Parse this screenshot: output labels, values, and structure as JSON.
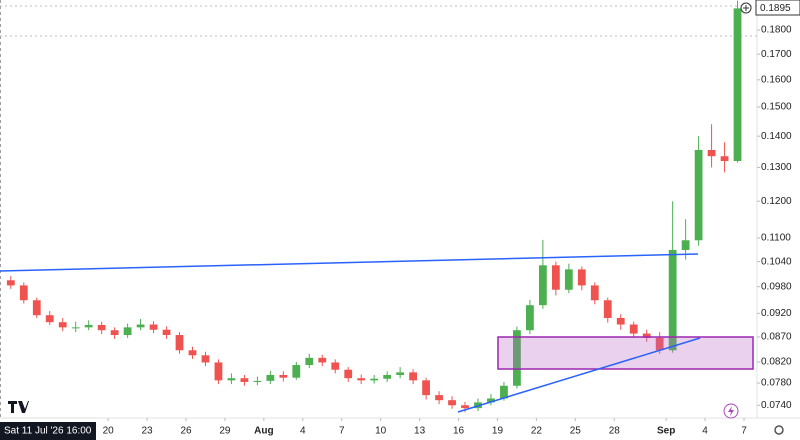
{
  "chart_data": {
    "type": "candlestick",
    "x": [
      "2026-07-12",
      "2026-07-13",
      "2026-07-14",
      "2026-07-15",
      "2026-07-16",
      "2026-07-17",
      "2026-07-18",
      "2026-07-19",
      "2026-07-20",
      "2026-07-21",
      "2026-07-22",
      "2026-07-23",
      "2026-07-24",
      "2026-07-25",
      "2026-07-26",
      "2026-07-27",
      "2026-07-28",
      "2026-07-29",
      "2026-07-30",
      "2026-07-31",
      "2026-08-01",
      "2026-08-02",
      "2026-08-03",
      "2026-08-04",
      "2026-08-05",
      "2026-08-06",
      "2026-08-07",
      "2026-08-08",
      "2026-08-09",
      "2026-08-10",
      "2026-08-11",
      "2026-08-12",
      "2026-08-13",
      "2026-08-14",
      "2026-08-15",
      "2026-08-16",
      "2026-08-17",
      "2026-08-18",
      "2026-08-19",
      "2026-08-20",
      "2026-08-21",
      "2026-08-22",
      "2026-08-23",
      "2026-08-24",
      "2026-08-25",
      "2026-08-26",
      "2026-08-27",
      "2026-08-28",
      "2026-08-29",
      "2026-08-30",
      "2026-08-31",
      "2026-09-01",
      "2026-09-02",
      "2026-09-03",
      "2026-09-04",
      "2026-09-05",
      "2026-09-06"
    ],
    "open": [
      0.0995,
      0.0983,
      0.0949,
      0.0916,
      0.0901,
      0.089,
      0.089,
      0.0895,
      0.0884,
      0.0874,
      0.089,
      0.0896,
      0.0885,
      0.0874,
      0.0843,
      0.0833,
      0.0819,
      0.0785,
      0.0789,
      0.0782,
      0.0784,
      0.0795,
      0.079,
      0.0814,
      0.0828,
      0.0819,
      0.0805,
      0.0789,
      0.0785,
      0.0788,
      0.0795,
      0.08,
      0.0785,
      0.0758,
      0.0749,
      0.074,
      0.0735,
      0.0745,
      0.0752,
      0.0775,
      0.0884,
      0.0938,
      0.1031,
      0.0973,
      0.1021,
      0.0983,
      0.0949,
      0.091,
      0.0896,
      0.0877,
      0.0868,
      0.0843,
      0.1069,
      0.1094,
      0.1355,
      0.1335,
      0.132
    ],
    "high": [
      0.1005,
      0.099,
      0.0955,
      0.0925,
      0.091,
      0.0902,
      0.0905,
      0.0902,
      0.089,
      0.0898,
      0.0908,
      0.0903,
      0.0892,
      0.088,
      0.085,
      0.084,
      0.0825,
      0.0798,
      0.0795,
      0.0792,
      0.0803,
      0.0802,
      0.082,
      0.0836,
      0.0834,
      0.0825,
      0.081,
      0.0796,
      0.0795,
      0.0802,
      0.081,
      0.0806,
      0.079,
      0.0765,
      0.0756,
      0.0746,
      0.0752,
      0.076,
      0.0782,
      0.0892,
      0.095,
      0.1095,
      0.104,
      0.1035,
      0.1028,
      0.099,
      0.0955,
      0.0918,
      0.0902,
      0.0885,
      0.088,
      0.12,
      0.115,
      0.14,
      0.144,
      0.138,
      0.193
    ],
    "low": [
      0.0975,
      0.0942,
      0.091,
      0.0895,
      0.0882,
      0.088,
      0.0884,
      0.0876,
      0.0866,
      0.0868,
      0.0884,
      0.0878,
      0.0866,
      0.0836,
      0.0826,
      0.0812,
      0.0778,
      0.0778,
      0.0775,
      0.0776,
      0.0778,
      0.0783,
      0.0786,
      0.0808,
      0.0812,
      0.0798,
      0.0782,
      0.0778,
      0.0779,
      0.0782,
      0.0789,
      0.0778,
      0.075,
      0.0742,
      0.0734,
      0.0728,
      0.073,
      0.074,
      0.0748,
      0.077,
      0.0876,
      0.093,
      0.096,
      0.0965,
      0.0972,
      0.094,
      0.09,
      0.0885,
      0.0868,
      0.086,
      0.0836,
      0.0838,
      0.1045,
      0.108,
      0.13,
      0.1285,
      0.1315
    ],
    "close": [
      0.0983,
      0.0949,
      0.0916,
      0.0901,
      0.089,
      0.089,
      0.0895,
      0.0884,
      0.0874,
      0.089,
      0.0896,
      0.0885,
      0.0874,
      0.0843,
      0.0833,
      0.0819,
      0.0785,
      0.0789,
      0.0782,
      0.0784,
      0.0795,
      0.079,
      0.0814,
      0.0828,
      0.0819,
      0.0805,
      0.0789,
      0.0785,
      0.0788,
      0.0795,
      0.08,
      0.0785,
      0.0758,
      0.0749,
      0.074,
      0.0735,
      0.0745,
      0.0752,
      0.0775,
      0.0884,
      0.0938,
      0.1031,
      0.0973,
      0.1021,
      0.0983,
      0.0949,
      0.091,
      0.0896,
      0.0877,
      0.0868,
      0.0843,
      0.1069,
      0.1094,
      0.1355,
      0.1335,
      0.132,
      0.1895
    ],
    "up_color": "#4caf50",
    "down_color": "#ef5350",
    "log_scale": true,
    "grid": false,
    "xlim": [
      "2026-07-11T16:00",
      "2026-09-08T00:00"
    ],
    "ylim": [
      0.0718,
      0.1933
    ],
    "xticks": [
      {
        "value": "2026-07-20",
        "label": "20"
      },
      {
        "value": "2026-07-23",
        "label": "23"
      },
      {
        "value": "2026-07-26",
        "label": "26"
      },
      {
        "value": "2026-07-29",
        "label": "29"
      },
      {
        "value": "2026-08-01",
        "label": "Aug"
      },
      {
        "value": "2026-08-04",
        "label": "4"
      },
      {
        "value": "2026-08-07",
        "label": "7"
      },
      {
        "value": "2026-08-10",
        "label": "10"
      },
      {
        "value": "2026-08-13",
        "label": "13"
      },
      {
        "value": "2026-08-16",
        "label": "16"
      },
      {
        "value": "2026-08-19",
        "label": "19"
      },
      {
        "value": "2026-08-22",
        "label": "22"
      },
      {
        "value": "2026-08-25",
        "label": "25"
      },
      {
        "value": "2026-08-28",
        "label": "28"
      },
      {
        "value": "2026-09-01",
        "label": "Sep"
      },
      {
        "value": "2026-09-04",
        "label": "4"
      },
      {
        "value": "2026-09-07",
        "label": "7"
      }
    ],
    "yticks": [
      {
        "value": 0.074,
        "label": "0.0740"
      },
      {
        "value": 0.078,
        "label": "0.0780"
      },
      {
        "value": 0.082,
        "label": "0.0820"
      },
      {
        "value": 0.087,
        "label": "0.0870"
      },
      {
        "value": 0.092,
        "label": "0.0920"
      },
      {
        "value": 0.098,
        "label": "0.0980"
      },
      {
        "value": 0.104,
        "label": "0.1040"
      },
      {
        "value": 0.11,
        "label": "0.1100"
      },
      {
        "value": 0.12,
        "label": "0.1200"
      },
      {
        "value": 0.13,
        "label": "0.1300"
      },
      {
        "value": 0.14,
        "label": "0.1400"
      },
      {
        "value": 0.15,
        "label": "0.1500"
      },
      {
        "value": 0.16,
        "label": "0.1600"
      },
      {
        "value": 0.17,
        "label": "0.1700"
      },
      {
        "value": 0.18,
        "label": "0.1800"
      }
    ],
    "last_price": {
      "value": 0.1895,
      "label": "0.1895"
    },
    "crosshair_label": "Sat 11 Jul '26  16:00"
  }
}
